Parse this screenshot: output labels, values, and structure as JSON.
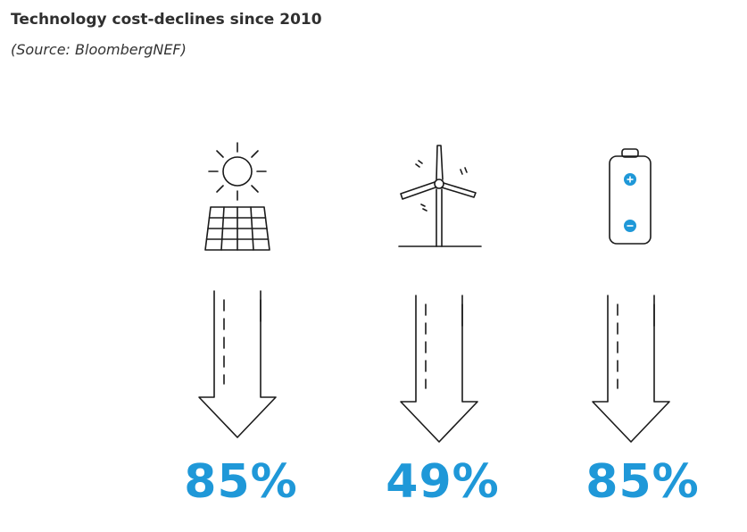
{
  "header": {
    "title": "Technology cost-declines since 2010",
    "subtitle": "(Source: BloombergNEF)"
  },
  "colors": {
    "accent": "#1f98d8",
    "stroke": "#1a1a1a"
  },
  "items": [
    {
      "icon": "solar-panel-icon",
      "value": "85%"
    },
    {
      "icon": "wind-turbine-icon",
      "value": "49%"
    },
    {
      "icon": "battery-icon",
      "value": "85%"
    }
  ]
}
